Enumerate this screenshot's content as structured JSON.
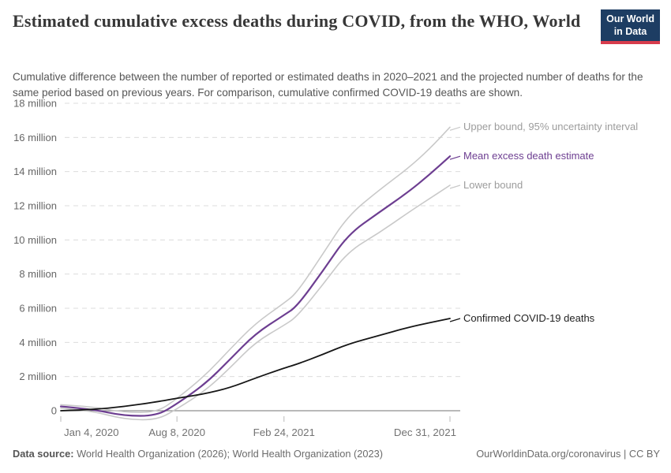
{
  "header": {
    "title": "Estimated cumulative excess deaths during COVID, from the WHO, World",
    "subtitle": "Cumulative difference between the number of reported or estimated deaths in 2020–2021 and the projected number of deaths for the same period based on previous years. For comparison, cumulative confirmed COVID-19 deaths are shown.",
    "logo": {
      "line1": "Our World",
      "line2": "in Data"
    }
  },
  "chart_data": {
    "type": "line",
    "unit": "deaths (millions)",
    "ylim": [
      -1,
      18
    ],
    "grid": "horizontal-dashed",
    "legend_position": "right-of-line-ends",
    "x": [
      "2020-01-04",
      "2020-03-01",
      "2020-05-01",
      "2020-07-01",
      "2020-08-08",
      "2020-10-01",
      "2020-11-15",
      "2021-01-01",
      "2021-02-24",
      "2021-03-20",
      "2021-05-08",
      "2021-06-23",
      "2021-08-20",
      "2021-10-14",
      "2021-11-22",
      "2021-12-31"
    ],
    "x_ticks": [
      {
        "date": "2020-01-04",
        "label": "Jan 4, 2020"
      },
      {
        "date": "2020-08-08",
        "label": "Aug 8, 2020"
      },
      {
        "date": "2021-02-24",
        "label": "Feb 24, 2021"
      },
      {
        "date": "2021-12-31",
        "label": "Dec 31, 2021"
      }
    ],
    "y_ticks": [
      {
        "value": 0,
        "label": "0"
      },
      {
        "value": 2,
        "label": "2 million"
      },
      {
        "value": 4,
        "label": "4 million"
      },
      {
        "value": 6,
        "label": "6 million"
      },
      {
        "value": 8,
        "label": "8 million"
      },
      {
        "value": 10,
        "label": "10 million"
      },
      {
        "value": 12,
        "label": "12 million"
      },
      {
        "value": 14,
        "label": "14 million"
      },
      {
        "value": 16,
        "label": "16 million"
      },
      {
        "value": 18,
        "label": "18 million"
      }
    ],
    "series": [
      {
        "name": "Upper bound, 95% uncertainty interval",
        "color": "#c9c9c9",
        "label_color": "#9c9c9c",
        "width": 1.6,
        "values": [
          0.35,
          0.25,
          -0.1,
          -0.1,
          0.7,
          2.1,
          3.6,
          5.1,
          6.3,
          6.9,
          9.2,
          11.4,
          12.9,
          14.2,
          15.3,
          16.6
        ]
      },
      {
        "name": "Mean excess death estimate",
        "color": "#6d3e91",
        "label_color": "#6d3e91",
        "width": 2.2,
        "values": [
          0.25,
          0.1,
          -0.3,
          -0.3,
          0.4,
          1.6,
          3.0,
          4.5,
          5.6,
          6.1,
          8.2,
          10.3,
          11.6,
          12.8,
          13.8,
          14.9
        ]
      },
      {
        "name": "Lower bound",
        "color": "#c9c9c9",
        "label_color": "#9c9c9c",
        "width": 1.6,
        "values": [
          0.15,
          0.0,
          -0.5,
          -0.55,
          0.1,
          1.2,
          2.5,
          4.0,
          5.0,
          5.5,
          7.4,
          9.3,
          10.4,
          11.6,
          12.4,
          13.2
        ]
      },
      {
        "name": "Confirmed COVID-19 deaths",
        "color": "#161616",
        "label_color": "#1f1f1f",
        "width": 1.8,
        "values": [
          0.0,
          0.06,
          0.24,
          0.52,
          0.73,
          1.0,
          1.35,
          1.9,
          2.5,
          2.72,
          3.3,
          3.9,
          4.4,
          4.88,
          5.15,
          5.4
        ]
      }
    ]
  },
  "footer": {
    "source_label": "Data source:",
    "source_text": " World Health Organization (2026); World Health Organization (2023)",
    "right_text": "OurWorldinData.org/coronavirus | CC BY"
  }
}
